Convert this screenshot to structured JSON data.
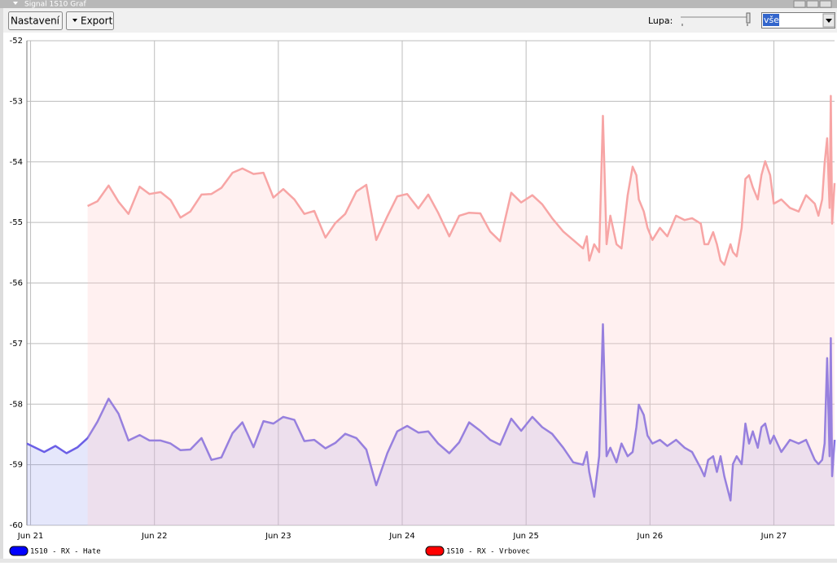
{
  "ui": {
    "title": "Signal 1S10 Graf",
    "buttons": [
      "Nastavení",
      "Export"
    ],
    "zoom_label": "Lupa:",
    "zoom_select": "vše"
  },
  "chart_data": {
    "type": "line",
    "x": [
      20.97,
      21.11,
      21.2,
      21.29,
      21.38,
      21.46,
      21.54,
      21.63,
      21.71,
      21.79,
      21.88,
      21.96,
      22.05,
      22.13,
      22.21,
      22.29,
      22.38,
      22.46,
      22.54,
      22.63,
      22.71,
      22.8,
      22.88,
      22.96,
      23.04,
      23.13,
      23.21,
      23.29,
      23.38,
      23.46,
      23.54,
      23.63,
      23.71,
      23.79,
      23.88,
      23.96,
      24.04,
      24.13,
      24.21,
      24.29,
      24.38,
      24.46,
      24.54,
      24.63,
      24.71,
      24.79,
      24.88,
      24.96,
      25.05,
      25.13,
      25.21,
      25.3,
      25.38,
      25.46,
      25.49,
      25.51,
      25.55,
      25.59,
      25.62,
      25.65,
      25.68,
      25.73,
      25.77,
      25.82,
      25.86,
      25.89,
      25.91,
      25.95,
      25.98,
      26.02,
      26.08,
      26.14,
      26.21,
      26.28,
      26.34,
      26.41,
      26.44,
      26.47,
      26.51,
      26.54,
      26.57,
      26.6,
      26.65,
      26.67,
      26.7,
      26.74,
      26.77,
      26.8,
      26.83,
      26.87,
      26.9,
      26.93,
      26.97,
      27.0,
      27.06,
      27.13,
      27.2,
      27.26,
      27.33,
      27.36,
      27.39,
      27.41,
      27.43,
      27.45,
      27.46,
      27.47,
      27.49
    ],
    "series": [
      {
        "name": "1S10 - RX - Hate",
        "color": "#6b5fe6",
        "fill": "rgba(110,120,235,0.18)",
        "legend_color": "#0000ff",
        "values": [
          -58.65,
          -58.79,
          -58.69,
          -58.81,
          -58.71,
          -58.56,
          -58.29,
          -57.91,
          -58.16,
          -58.6,
          -58.51,
          -58.6,
          -58.6,
          -58.65,
          -58.76,
          -58.75,
          -58.56,
          -58.92,
          -58.88,
          -58.48,
          -58.3,
          -58.71,
          -58.28,
          -58.32,
          -58.21,
          -58.26,
          -58.61,
          -58.59,
          -58.73,
          -58.64,
          -58.49,
          -58.56,
          -58.75,
          -59.34,
          -58.81,
          -58.45,
          -58.36,
          -58.47,
          -58.45,
          -58.65,
          -58.81,
          -58.63,
          -58.3,
          -58.44,
          -58.59,
          -58.67,
          -58.24,
          -58.44,
          -58.21,
          -58.38,
          -58.49,
          -58.72,
          -58.96,
          -59.0,
          -58.79,
          -59.12,
          -59.53,
          -58.86,
          -56.68,
          -58.86,
          -58.72,
          -58.96,
          -58.65,
          -58.86,
          -58.79,
          -58.38,
          -58.01,
          -58.18,
          -58.52,
          -58.65,
          -58.59,
          -58.69,
          -58.59,
          -58.72,
          -58.79,
          -59.06,
          -59.19,
          -58.92,
          -58.86,
          -59.12,
          -58.86,
          -59.19,
          -59.59,
          -58.99,
          -58.86,
          -58.99,
          -58.32,
          -58.65,
          -58.45,
          -58.72,
          -58.38,
          -58.32,
          -58.65,
          -58.52,
          -58.79,
          -58.59,
          -58.65,
          -58.59,
          -58.92,
          -58.99,
          -58.92,
          -58.65,
          -57.24,
          -58.86,
          -56.91,
          -59.19,
          -58.59
        ]
      },
      {
        "name": "1S10 - RX - Vrbovec",
        "color": "#f7a5a5",
        "fill": "rgba(255,205,205,0.3)",
        "legend_color": "#ff0000",
        "values": [
          null,
          null,
          null,
          null,
          null,
          -54.73,
          -54.65,
          -54.39,
          -54.66,
          -54.86,
          -54.41,
          -54.53,
          -54.5,
          -54.63,
          -54.92,
          -54.82,
          -54.54,
          -54.53,
          -54.43,
          -54.18,
          -54.11,
          -54.2,
          -54.18,
          -54.59,
          -54.45,
          -54.62,
          -54.86,
          -54.81,
          -55.25,
          -55.01,
          -54.86,
          -54.49,
          -54.38,
          -55.29,
          -54.9,
          -54.57,
          -54.53,
          -54.77,
          -54.54,
          -54.84,
          -55.23,
          -54.89,
          -54.84,
          -54.85,
          -55.15,
          -55.31,
          -54.51,
          -54.67,
          -54.55,
          -54.7,
          -54.93,
          -55.15,
          -55.29,
          -55.43,
          -55.23,
          -55.63,
          -55.36,
          -55.49,
          -53.24,
          -55.36,
          -54.89,
          -55.36,
          -55.43,
          -54.55,
          -54.08,
          -54.22,
          -54.62,
          -54.82,
          -55.09,
          -55.29,
          -55.09,
          -55.23,
          -54.89,
          -54.96,
          -54.93,
          -55.02,
          -55.36,
          -55.36,
          -55.16,
          -55.36,
          -55.63,
          -55.7,
          -55.36,
          -55.49,
          -55.56,
          -55.09,
          -54.28,
          -54.22,
          -54.42,
          -54.62,
          -54.22,
          -53.99,
          -54.22,
          -54.69,
          -54.62,
          -54.76,
          -54.82,
          -54.55,
          -54.69,
          -54.89,
          -54.62,
          -54.02,
          -53.61,
          -54.76,
          -52.91,
          -55.02,
          -54.35
        ]
      }
    ],
    "xlim": [
      20.97,
      27.49
    ],
    "xticks": [
      {
        "value": 21,
        "label": "Jun 21"
      },
      {
        "value": 22,
        "label": "Jun 22"
      },
      {
        "value": 23,
        "label": "Jun 23"
      },
      {
        "value": 24,
        "label": "Jun 24"
      },
      {
        "value": 25,
        "label": "Jun 25"
      },
      {
        "value": 26,
        "label": "Jun 26"
      },
      {
        "value": 27,
        "label": "Jun 27"
      }
    ],
    "ylim": [
      -60,
      -52
    ],
    "yticks": [
      -60,
      -59,
      -58,
      -57,
      -56,
      -55,
      -54,
      -53,
      -52
    ],
    "grid": true
  }
}
